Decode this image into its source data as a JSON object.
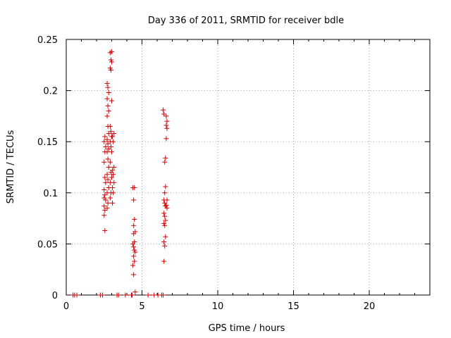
{
  "chart_data": {
    "type": "scatter",
    "title": "Day 336 of 2011, SRMTID for receiver bdle",
    "xlabel": "GPS time / hours",
    "ylabel": "SRMTID / TECUs",
    "xlim": [
      0,
      24
    ],
    "ylim": [
      0,
      0.25
    ],
    "xticks": [
      0,
      5,
      10,
      15,
      20
    ],
    "xtick_labels": [
      "0",
      "5",
      "10",
      "15",
      "20"
    ],
    "yticks": [
      0,
      0.05,
      0.1,
      0.15,
      0.2,
      0.25
    ],
    "ytick_labels": [
      "0",
      "0.05",
      "0.1",
      "0.15",
      "0.2",
      "0.25"
    ],
    "grid": true,
    "marker": "plus",
    "color": "#cc0000",
    "series": [
      {
        "points": [
          [
            0.45,
            0
          ],
          [
            0.55,
            0
          ],
          [
            0.7,
            0
          ],
          [
            2.25,
            0
          ],
          [
            2.4,
            0
          ],
          [
            3.35,
            0
          ],
          [
            3.45,
            0
          ],
          [
            3.9,
            0
          ],
          [
            4.3,
            0
          ],
          [
            4.35,
            0
          ],
          [
            5.4,
            0
          ],
          [
            5.8,
            0
          ],
          [
            6.05,
            0
          ],
          [
            6.3,
            0
          ],
          [
            6.4,
            0
          ],
          [
            2.55,
            0.063
          ],
          [
            2.5,
            0.078
          ],
          [
            2.55,
            0.083
          ],
          [
            2.5,
            0.087
          ],
          [
            2.6,
            0.093
          ],
          [
            2.5,
            0.095
          ],
          [
            2.55,
            0.098
          ],
          [
            2.5,
            0.103
          ],
          [
            2.6,
            0.11
          ],
          [
            2.55,
            0.115
          ],
          [
            2.5,
            0.13
          ],
          [
            2.55,
            0.14
          ],
          [
            2.6,
            0.145
          ],
          [
            2.5,
            0.15
          ],
          [
            2.55,
            0.155
          ],
          [
            2.7,
            0.085
          ],
          [
            2.75,
            0.09
          ],
          [
            2.7,
            0.1
          ],
          [
            2.8,
            0.105
          ],
          [
            2.75,
            0.113
          ],
          [
            2.7,
            0.118
          ],
          [
            2.8,
            0.125
          ],
          [
            2.75,
            0.133
          ],
          [
            2.7,
            0.14
          ],
          [
            2.8,
            0.143
          ],
          [
            2.75,
            0.148
          ],
          [
            2.7,
            0.152
          ],
          [
            2.8,
            0.158
          ],
          [
            2.75,
            0.165
          ],
          [
            2.7,
            0.175
          ],
          [
            2.8,
            0.18
          ],
          [
            2.75,
            0.185
          ],
          [
            2.7,
            0.192
          ],
          [
            2.8,
            0.198
          ],
          [
            2.75,
            0.203
          ],
          [
            2.7,
            0.207
          ],
          [
            2.9,
            0.095
          ],
          [
            2.95,
            0.1
          ],
          [
            2.9,
            0.11
          ],
          [
            3.0,
            0.115
          ],
          [
            2.95,
            0.12
          ],
          [
            2.9,
            0.13
          ],
          [
            3.0,
            0.14
          ],
          [
            2.95,
            0.145
          ],
          [
            2.9,
            0.15
          ],
          [
            3.0,
            0.155
          ],
          [
            2.95,
            0.16
          ],
          [
            2.9,
            0.165
          ],
          [
            3.0,
            0.19
          ],
          [
            2.95,
            0.22
          ],
          [
            2.9,
            0.222
          ],
          [
            3.0,
            0.228
          ],
          [
            2.95,
            0.23
          ],
          [
            2.9,
            0.237
          ],
          [
            3.0,
            0.238
          ],
          [
            3.05,
            0.09
          ],
          [
            3.1,
            0.1
          ],
          [
            3.05,
            0.105
          ],
          [
            3.15,
            0.11
          ],
          [
            3.1,
            0.118
          ],
          [
            3.05,
            0.122
          ],
          [
            3.15,
            0.125
          ],
          [
            3.1,
            0.15
          ],
          [
            3.05,
            0.155
          ],
          [
            3.15,
            0.158
          ],
          [
            4.4,
            0.105
          ],
          [
            4.5,
            0.105
          ],
          [
            4.45,
            0.093
          ],
          [
            4.5,
            0.074
          ],
          [
            4.45,
            0.068
          ],
          [
            4.55,
            0.062
          ],
          [
            4.45,
            0.06
          ],
          [
            4.5,
            0.052
          ],
          [
            4.4,
            0.05
          ],
          [
            4.45,
            0.047
          ],
          [
            4.5,
            0.044
          ],
          [
            4.55,
            0.042
          ],
          [
            4.45,
            0.038
          ],
          [
            4.5,
            0.033
          ],
          [
            4.4,
            0.029
          ],
          [
            4.45,
            0.02
          ],
          [
            4.55,
            0.003
          ],
          [
            6.4,
            0.181
          ],
          [
            6.45,
            0.177
          ],
          [
            6.5,
            0.13
          ],
          [
            6.55,
            0.134
          ],
          [
            6.5,
            0.1
          ],
          [
            6.55,
            0.106
          ],
          [
            6.45,
            0.093
          ],
          [
            6.5,
            0.09
          ],
          [
            6.55,
            0.087
          ],
          [
            6.45,
            0.08
          ],
          [
            6.5,
            0.077
          ],
          [
            6.55,
            0.073
          ],
          [
            6.45,
            0.07
          ],
          [
            6.5,
            0.068
          ],
          [
            6.55,
            0.057
          ],
          [
            6.45,
            0.052
          ],
          [
            6.5,
            0.048
          ],
          [
            6.45,
            0.033
          ],
          [
            6.6,
            0.175
          ],
          [
            6.65,
            0.17
          ],
          [
            6.6,
            0.166
          ],
          [
            6.65,
            0.163
          ],
          [
            6.6,
            0.153
          ],
          [
            6.65,
            0.093
          ],
          [
            6.6,
            0.088
          ],
          [
            6.65,
            0.085
          ]
        ]
      }
    ]
  }
}
